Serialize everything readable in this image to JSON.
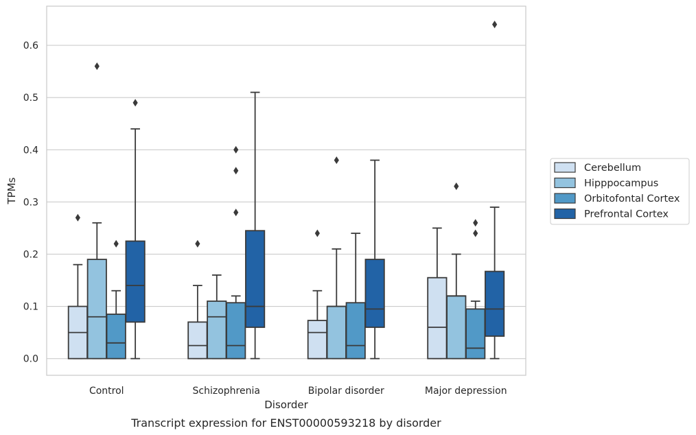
{
  "chart_data": {
    "type": "box",
    "caption": "Transcript expression for ENST00000593218 by disorder",
    "xlabel": "Disorder",
    "ylabel": "TPMs",
    "ylim": [
      -0.032,
      0.675
    ],
    "yticks": [
      0.0,
      0.1,
      0.2,
      0.3,
      0.4,
      0.5,
      0.6
    ],
    "ytick_labels": [
      "0.0",
      "0.1",
      "0.2",
      "0.3",
      "0.4",
      "0.5",
      "0.6"
    ],
    "grid": "horizontal",
    "legend_placement": "right",
    "categories": [
      "Control",
      "Schizophrenia",
      "Bipolar disorder",
      "Major depression"
    ],
    "series": [
      {
        "name": "Cerebellum",
        "color": "#cfe0f1",
        "boxes": [
          {
            "whisker_low": 0.0,
            "q1": 0.0,
            "median": 0.05,
            "q3": 0.1,
            "whisker_high": 0.18,
            "outliers": [
              0.27
            ]
          },
          {
            "whisker_low": 0.0,
            "q1": 0.0,
            "median": 0.025,
            "q3": 0.07,
            "whisker_high": 0.14,
            "outliers": [
              0.22
            ]
          },
          {
            "whisker_low": 0.0,
            "q1": 0.0,
            "median": 0.05,
            "q3": 0.073,
            "whisker_high": 0.13,
            "outliers": [
              0.24
            ]
          },
          {
            "whisker_low": 0.0,
            "q1": 0.0,
            "median": 0.06,
            "q3": 0.155,
            "whisker_high": 0.25,
            "outliers": []
          }
        ]
      },
      {
        "name": "Hipppocampus",
        "color": "#93c3df",
        "boxes": [
          {
            "whisker_low": 0.0,
            "q1": 0.0,
            "median": 0.08,
            "q3": 0.19,
            "whisker_high": 0.26,
            "outliers": [
              0.56
            ]
          },
          {
            "whisker_low": 0.0,
            "q1": 0.0,
            "median": 0.08,
            "q3": 0.11,
            "whisker_high": 0.16,
            "outliers": []
          },
          {
            "whisker_low": 0.0,
            "q1": 0.0,
            "median": 0.1,
            "q3": 0.1,
            "whisker_high": 0.21,
            "outliers": [
              0.38
            ]
          },
          {
            "whisker_low": 0.0,
            "q1": 0.0,
            "median": 0.12,
            "q3": 0.12,
            "whisker_high": 0.2,
            "outliers": [
              0.33
            ]
          }
        ]
      },
      {
        "name": "Orbitofontal Cortex",
        "color": "#5199c7",
        "boxes": [
          {
            "whisker_low": 0.0,
            "q1": 0.0,
            "median": 0.03,
            "q3": 0.085,
            "whisker_high": 0.13,
            "outliers": [
              0.22
            ]
          },
          {
            "whisker_low": 0.0,
            "q1": 0.0,
            "median": 0.025,
            "q3": 0.107,
            "whisker_high": 0.12,
            "outliers": [
              0.28,
              0.36,
              0.4
            ]
          },
          {
            "whisker_low": 0.0,
            "q1": 0.0,
            "median": 0.025,
            "q3": 0.107,
            "whisker_high": 0.24,
            "outliers": []
          },
          {
            "whisker_low": 0.0,
            "q1": 0.0,
            "median": 0.02,
            "q3": 0.095,
            "whisker_high": 0.11,
            "outliers": [
              0.24,
              0.26
            ]
          }
        ]
      },
      {
        "name": "Prefrontal Cortex",
        "color": "#2263a6",
        "boxes": [
          {
            "whisker_low": 0.0,
            "q1": 0.07,
            "median": 0.14,
            "q3": 0.225,
            "whisker_high": 0.44,
            "outliers": [
              0.49
            ]
          },
          {
            "whisker_low": 0.0,
            "q1": 0.06,
            "median": 0.1,
            "q3": 0.245,
            "whisker_high": 0.51,
            "outliers": []
          },
          {
            "whisker_low": 0.0,
            "q1": 0.06,
            "median": 0.095,
            "q3": 0.19,
            "whisker_high": 0.38,
            "outliers": []
          },
          {
            "whisker_low": 0.0,
            "q1": 0.043,
            "median": 0.095,
            "q3": 0.167,
            "whisker_high": 0.29,
            "outliers": [
              0.64
            ]
          }
        ]
      }
    ]
  }
}
